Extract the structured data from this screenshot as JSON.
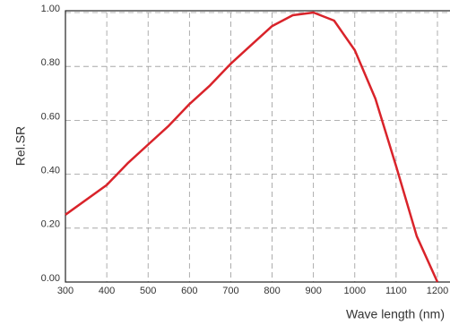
{
  "chart_data": {
    "type": "line",
    "y_label": "Rel.SR",
    "x_label": "Wave length (nm)",
    "x": [
      300,
      400,
      450,
      500,
      550,
      600,
      650,
      700,
      750,
      800,
      850,
      900,
      950,
      1000,
      1050,
      1100,
      1150,
      1200
    ],
    "series": [
      {
        "name": "Rel.SR",
        "color": "#d9232a",
        "values": [
          0.25,
          0.36,
          0.44,
          0.51,
          0.58,
          0.66,
          0.73,
          0.81,
          0.88,
          0.95,
          0.99,
          1.0,
          0.97,
          0.86,
          0.68,
          0.43,
          0.17,
          0.0
        ]
      }
    ],
    "xlim": [
      300,
      1200
    ],
    "ylim": [
      0,
      1
    ],
    "xticks": [
      300,
      400,
      500,
      600,
      700,
      800,
      900,
      1000,
      1100,
      1200
    ],
    "yticks": [
      {
        "value": 0,
        "label": "0.00"
      },
      {
        "value": 0.2,
        "label": "0.20"
      },
      {
        "value": 0.4,
        "label": "0.40"
      },
      {
        "value": 0.6,
        "label": "0.60"
      },
      {
        "value": 0.8,
        "label": "0.80"
      },
      {
        "value": 1,
        "label": "1.00"
      }
    ],
    "grid": true
  }
}
